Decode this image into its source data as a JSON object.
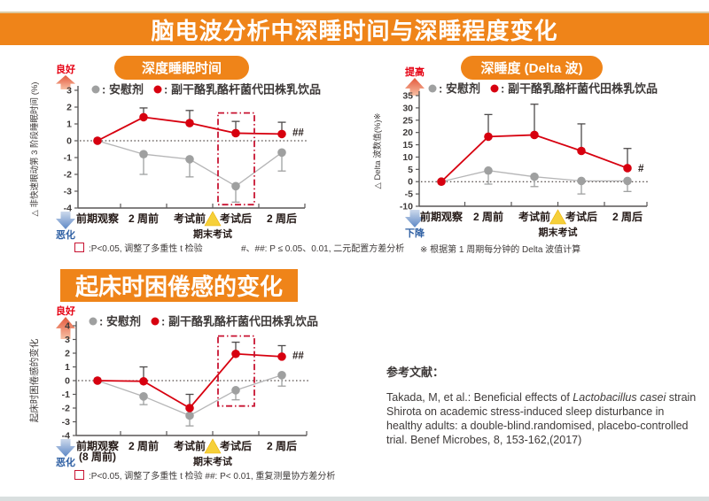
{
  "page_title": "脑电波分析中深睡时间与深睡程度变化",
  "section_title": "起床时困倦感的变化",
  "colors": {
    "banner_orange": "#ef8419",
    "product_red": "#d7000f",
    "placebo_gray": "#9fa0a0",
    "good_label_red": "#e60012",
    "bad_label_blue": "#2e5fa3",
    "highlight_red": "#c81432",
    "exam_triangle_yellow": "#f6d03a",
    "axis_gray": "#595757"
  },
  "icons": {
    "exam_marker": "yellow-triangle-icon",
    "improve": "up-arrow-icon",
    "worsen": "down-arrow-icon",
    "footnote_marker": "red-box-icon"
  },
  "chart_data": [
    {
      "type": "line",
      "title": "深度睡眠时间",
      "ylabel": "△ 非快速眼动第 3 阶段睡眠时间 (%)",
      "good_label": "良好",
      "bad_label": "恶化",
      "exam_label": "期末考试",
      "categories": [
        "前期观察",
        "2 周前",
        "考试前",
        "考试后",
        "2 周后"
      ],
      "ylim": [
        -4,
        3
      ],
      "yticks": [
        3,
        2,
        1,
        0,
        -1,
        -2,
        -3,
        -4
      ],
      "series": [
        {
          "name": ": 安慰剂",
          "color": "#9fa0a0",
          "line_color": "#b5b5b6",
          "err_color": "#9fa0a0",
          "values": [
            0,
            -0.8,
            -1.1,
            -2.7,
            -0.7
          ],
          "errors": [
            0,
            1.2,
            1.05,
            0.95,
            1.1
          ],
          "error_dir": "down"
        },
        {
          "name": ": 副干酪乳酪杆菌代田株乳饮品",
          "color": "#d7000f",
          "line_color": "#d7000f",
          "err_color": "#4d4a4a",
          "values": [
            0,
            1.4,
            1.05,
            0.45,
            0.4
          ],
          "errors": [
            0,
            0.55,
            0.75,
            0.7,
            0.7
          ],
          "error_dir": "up"
        }
      ],
      "annotation": {
        "text": "##",
        "value": 0.5
      },
      "highlight": {
        "index": 3,
        "top": 1.65,
        "bottom": -3.8
      },
      "footnotes": [
        {
          "glyph": "red-box",
          "text": ":P<0.05, 调整了多重性 t 检验"
        },
        {
          "glyph": null,
          "text": "#、##: P ≤ 0.05、0.01, 二元配置方差分析"
        }
      ]
    },
    {
      "type": "line",
      "title": "深睡度 (Delta 波)",
      "ylabel": "△ Delta 波数值(%)※",
      "good_label": "提高",
      "bad_label": "下降",
      "exam_label": "期末考试",
      "categories": [
        "前期观察",
        "2 周前",
        "考试前",
        "考试后",
        "2 周后"
      ],
      "ylim": [
        -10,
        35
      ],
      "yticks": [
        35,
        30,
        25,
        20,
        15,
        10,
        5,
        0,
        -5,
        -10
      ],
      "series": [
        {
          "name": ": 安慰剂",
          "color": "#9fa0a0",
          "line_color": "#b5b5b6",
          "err_color": "#9fa0a0",
          "values": [
            0,
            4.5,
            2,
            0.3,
            0.3
          ],
          "errors": [
            0,
            5.5,
            4,
            5.3,
            4.3
          ],
          "error_dir": "down"
        },
        {
          "name": ": 副干酪乳酪杆菌代田株乳饮品",
          "color": "#d7000f",
          "line_color": "#d7000f",
          "err_color": "#4d4a4a",
          "values": [
            0,
            18.3,
            19,
            12.5,
            5.5
          ],
          "errors": [
            0,
            9,
            12.5,
            11,
            8
          ],
          "error_dir": "up"
        }
      ],
      "annotation": {
        "text": "#",
        "value": 5.5
      },
      "highlight": null,
      "footnotes": [
        {
          "glyph": null,
          "text": "※ 根据第 1 周期每分钟的 Delta 波值计算"
        }
      ]
    },
    {
      "type": "line",
      "title": null,
      "ylabel": "起床时困倦感的变化",
      "good_label": "良好",
      "bad_label": "恶化",
      "exam_label": "期末考试",
      "categories": [
        [
          "前期观察",
          "(8 周前)"
        ],
        "2 周前",
        "考试前",
        "考试后",
        "2 周后"
      ],
      "ylim": [
        -4,
        4
      ],
      "yticks": [
        4,
        3,
        2,
        1,
        0,
        -1,
        -2,
        -3,
        -4
      ],
      "series": [
        {
          "name": ": 安慰剂",
          "color": "#9fa0a0",
          "line_color": "#b5b5b6",
          "err_color": "#9fa0a0",
          "values": [
            0,
            -1.15,
            -2.55,
            -0.7,
            0.4
          ],
          "errors": [
            0,
            0.6,
            0.75,
            0.7,
            0.8
          ],
          "error_dir": "down"
        },
        {
          "name": ": 副干酪乳酪杆菌代田株乳饮品",
          "color": "#d7000f",
          "line_color": "#d7000f",
          "err_color": "#4d4a4a",
          "values": [
            0,
            -0.05,
            -2.0,
            1.95,
            1.75
          ],
          "errors": [
            0,
            1.05,
            1.0,
            0.85,
            0.8
          ],
          "error_dir": "up"
        }
      ],
      "annotation": {
        "text": "##",
        "value": 1.85
      },
      "highlight": {
        "index": 3,
        "top": 3.25,
        "bottom": -1.85
      },
      "footnotes": [
        {
          "glyph": "red-box",
          "text": ":P<0.05, 调整了多重性 t 检验  ##: P< 0.01, 重复测量协方差分析"
        }
      ]
    }
  ],
  "reference": {
    "heading": "参考文献：",
    "pre": "Takada, M, et al.: Beneficial effects of ",
    "italic": "Lactobacillus casei",
    "post": " strain Shirota on academic stress-induced sleep disturbance in healthy adults: a double-blind.randomised, placebo-controlled trial. Benef Microbes, 8, 153-162,(2017)"
  }
}
